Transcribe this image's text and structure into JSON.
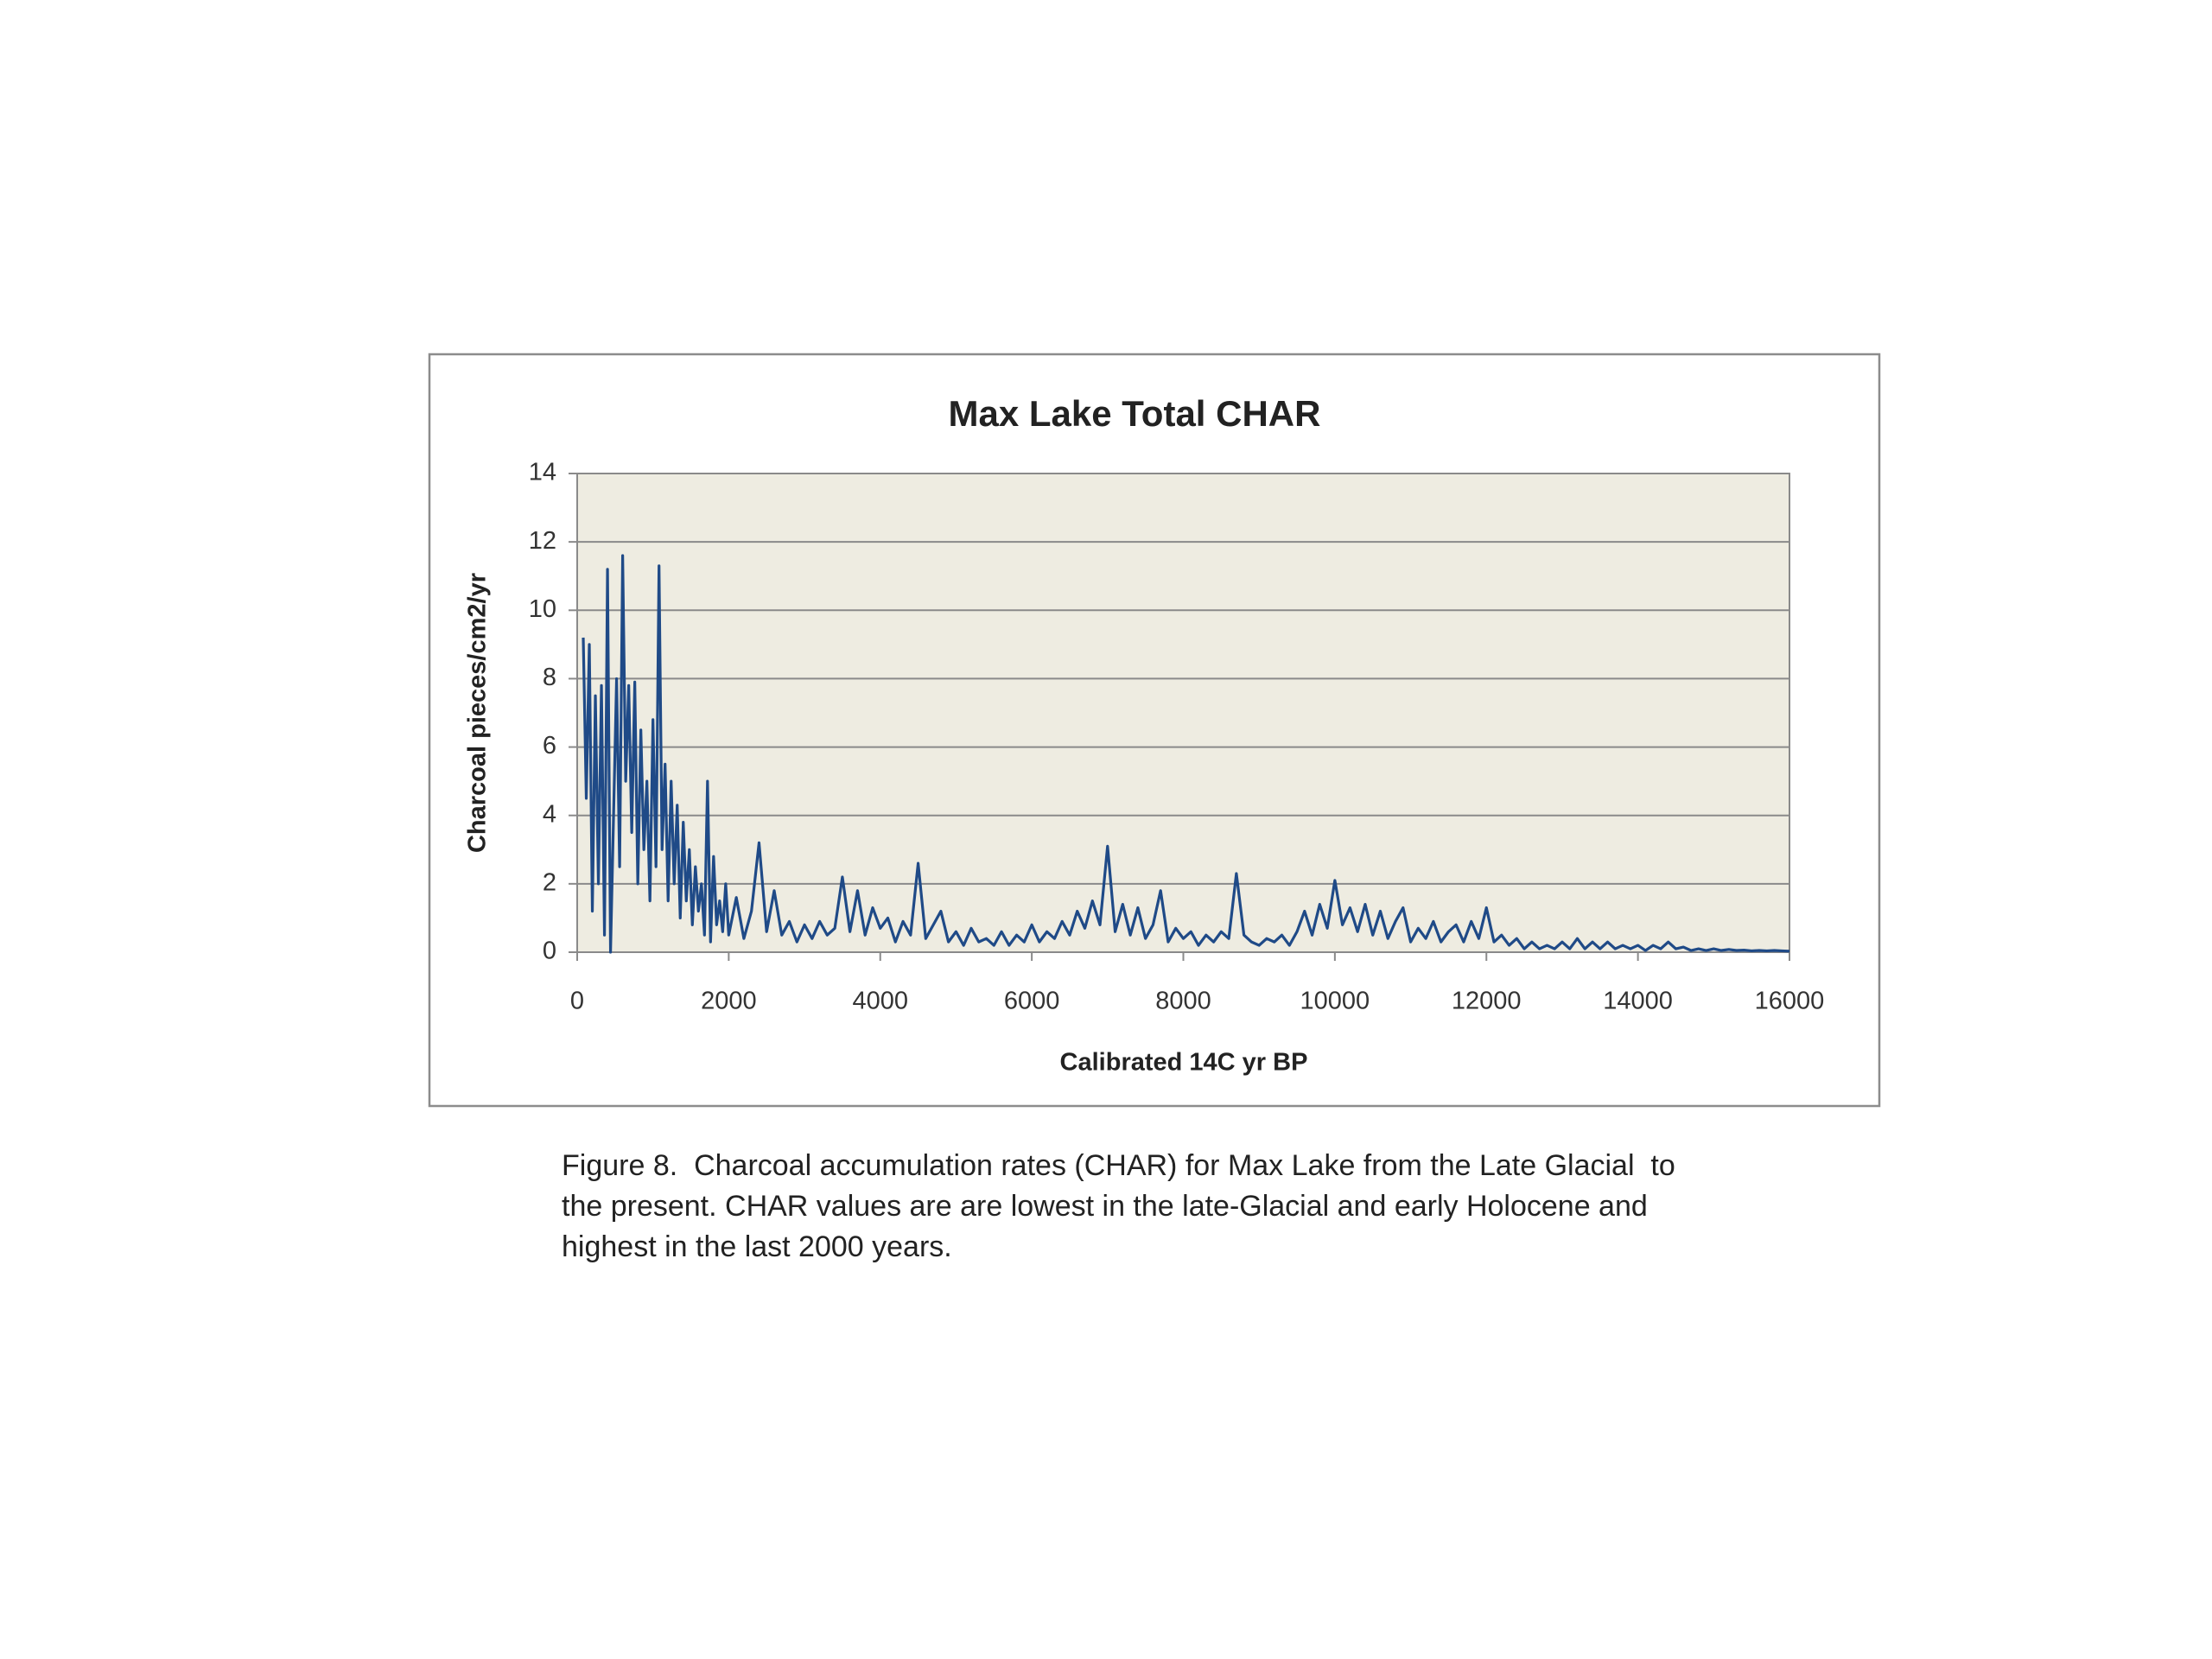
{
  "chart_data": {
    "type": "line",
    "title": "Max Lake Total CHAR",
    "xlabel": "Calibrated 14C yr BP",
    "ylabel": "Charcoal pieces/cm2/yr",
    "caption": [
      "Figure 8.  Charcoal accumulation rates (CHAR) for Max Lake from the Late Glacial  to",
      "the present. CHAR values are are lowest in the late-Glacial and early Holocene and",
      "highest in the last 2000 years."
    ],
    "xlim": [
      0,
      16000
    ],
    "xticks": [
      0,
      2000,
      4000,
      6000,
      8000,
      10000,
      12000,
      14000,
      16000
    ],
    "ylim": [
      0,
      14
    ],
    "yticks": [
      0,
      2,
      4,
      6,
      8,
      10,
      12,
      14
    ],
    "grid": true,
    "plot_background": "#eeece1",
    "series": [
      {
        "color": "#1f4a87",
        "x": [
          80,
          120,
          160,
          200,
          240,
          280,
          320,
          360,
          400,
          440,
          480,
          520,
          560,
          600,
          640,
          680,
          720,
          760,
          800,
          840,
          880,
          920,
          960,
          1000,
          1040,
          1080,
          1120,
          1160,
          1200,
          1240,
          1280,
          1320,
          1360,
          1400,
          1440,
          1480,
          1520,
          1560,
          1600,
          1640,
          1680,
          1720,
          1760,
          1800,
          1840,
          1880,
          1920,
          1960,
          2000,
          2100,
          2200,
          2300,
          2400,
          2500,
          2600,
          2700,
          2800,
          2900,
          3000,
          3100,
          3200,
          3300,
          3400,
          3500,
          3600,
          3700,
          3800,
          3900,
          4000,
          4100,
          4200,
          4300,
          4400,
          4500,
          4600,
          4700,
          4800,
          4900,
          5000,
          5100,
          5200,
          5300,
          5400,
          5500,
          5600,
          5700,
          5800,
          5900,
          6000,
          6100,
          6200,
          6300,
          6400,
          6500,
          6600,
          6700,
          6800,
          6900,
          7000,
          7100,
          7200,
          7300,
          7400,
          7500,
          7600,
          7700,
          7800,
          7900,
          8000,
          8100,
          8200,
          8300,
          8400,
          8500,
          8600,
          8700,
          8800,
          8900,
          9000,
          9100,
          9200,
          9300,
          9400,
          9500,
          9600,
          9700,
          9800,
          9900,
          10000,
          10100,
          10200,
          10300,
          10400,
          10500,
          10600,
          10700,
          10800,
          10900,
          11000,
          11100,
          11200,
          11300,
          11400,
          11500,
          11600,
          11700,
          11800,
          11900,
          12000,
          12100,
          12200,
          12300,
          12400,
          12500,
          12600,
          12700,
          12800,
          12900,
          13000,
          13100,
          13200,
          13300,
          13400,
          13500,
          13600,
          13700,
          13800,
          13900,
          14000,
          14100,
          14200,
          14300,
          14400,
          14500,
          14600,
          14700,
          14800,
          14900,
          15000,
          15100,
          15200,
          15300,
          15400,
          15500,
          15600,
          15700,
          15800,
          15900,
          16000
        ],
        "values": [
          9.2,
          4.5,
          9.0,
          1.2,
          7.5,
          2.0,
          7.8,
          0.5,
          11.2,
          0,
          4.0,
          8.0,
          2.5,
          11.6,
          5.0,
          7.8,
          3.5,
          7.9,
          2.0,
          6.5,
          3.0,
          5.0,
          1.5,
          6.8,
          2.5,
          11.3,
          3.0,
          5.5,
          1.5,
          5.0,
          2.0,
          4.3,
          1.0,
          3.8,
          1.5,
          3.0,
          0.8,
          2.5,
          1.2,
          2.0,
          0.5,
          5.0,
          0.3,
          2.8,
          0.8,
          1.5,
          0.6,
          2.0,
          0.5,
          1.6,
          0.4,
          1.2,
          3.2,
          0.6,
          1.8,
          0.5,
          0.9,
          0.3,
          0.8,
          0.4,
          0.9,
          0.5,
          0.7,
          2.2,
          0.6,
          1.8,
          0.5,
          1.3,
          0.7,
          1.0,
          0.3,
          0.9,
          0.5,
          2.6,
          0.4,
          0.8,
          1.2,
          0.3,
          0.6,
          0.2,
          0.7,
          0.3,
          0.4,
          0.2,
          0.6,
          0.2,
          0.5,
          0.3,
          0.8,
          0.3,
          0.6,
          0.4,
          0.9,
          0.5,
          1.2,
          0.7,
          1.5,
          0.8,
          3.1,
          0.6,
          1.4,
          0.5,
          1.3,
          0.4,
          0.8,
          1.8,
          0.3,
          0.7,
          0.4,
          0.6,
          0.2,
          0.5,
          0.3,
          0.6,
          0.4,
          2.3,
          0.5,
          0.3,
          0.2,
          0.4,
          0.3,
          0.5,
          0.2,
          0.6,
          1.2,
          0.5,
          1.4,
          0.7,
          2.1,
          0.8,
          1.3,
          0.6,
          1.4,
          0.5,
          1.2,
          0.4,
          0.9,
          1.3,
          0.3,
          0.7,
          0.4,
          0.9,
          0.3,
          0.6,
          0.8,
          0.3,
          0.9,
          0.4,
          1.3,
          0.3,
          0.5,
          0.2,
          0.4,
          0.1,
          0.3,
          0.1,
          0.2,
          0.1,
          0.3,
          0.1,
          0.4,
          0.1,
          0.3,
          0.1,
          0.3,
          0.1,
          0.2,
          0.1,
          0.2,
          0.05,
          0.2,
          0.1,
          0.3,
          0.1,
          0.15,
          0.05,
          0.1,
          0.05,
          0.1,
          0.05,
          0.08,
          0.05,
          0.06,
          0.04,
          0.05,
          0.04,
          0.05,
          0.04,
          0.03
        ]
      }
    ]
  }
}
